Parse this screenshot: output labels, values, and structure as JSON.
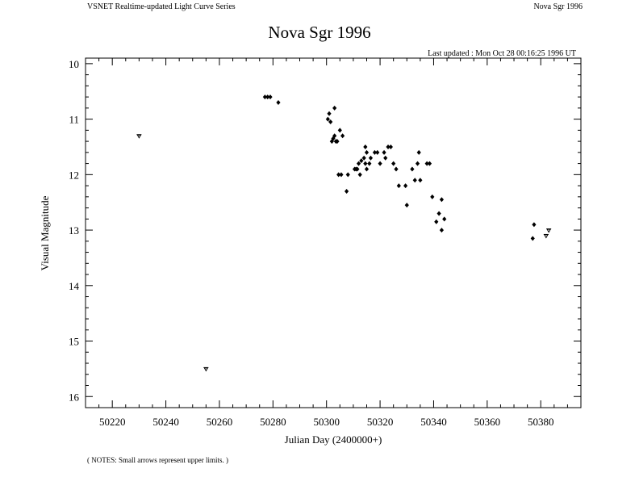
{
  "header": {
    "left": "VSNET Realtime-updated Light Curve Series",
    "right": "Nova Sgr 1996"
  },
  "last_updated": "Last updated :  Mon Oct 28 00:16:25 1996 UT",
  "notes": "( NOTES: Small arrows represent upper limits. )",
  "chart_data": {
    "type": "scatter",
    "title": "Nova Sgr 1996",
    "xlabel": "Julian Day (2400000+)",
    "ylabel": "Visual Magnitude",
    "xlim": [
      50210,
      50395
    ],
    "ylim": [
      16.2,
      9.9
    ],
    "y_inverted": true,
    "grid": false,
    "x_ticks": [
      50220,
      50240,
      50260,
      50280,
      50300,
      50320,
      50340,
      50360,
      50380
    ],
    "y_ticks": [
      10,
      11,
      12,
      13,
      14,
      15,
      16
    ],
    "series": [
      {
        "marker": "diamond",
        "points": [
          [
            50277,
            10.6
          ],
          [
            50278,
            10.6
          ],
          [
            50279,
            10.6
          ],
          [
            50282,
            10.7
          ],
          [
            50300.5,
            11.0
          ],
          [
            50301,
            10.9
          ],
          [
            50301.5,
            11.05
          ],
          [
            50302,
            11.4
          ],
          [
            50302.5,
            11.35
          ],
          [
            50303,
            10.8
          ],
          [
            50303,
            11.3
          ],
          [
            50303.5,
            11.4
          ],
          [
            50304,
            11.4
          ],
          [
            50304.5,
            12.0
          ],
          [
            50305,
            11.2
          ],
          [
            50305.5,
            12.0
          ],
          [
            50306,
            11.3
          ],
          [
            50307.5,
            12.3
          ],
          [
            50308,
            12.0
          ],
          [
            50310.5,
            11.9
          ],
          [
            50311,
            11.9
          ],
          [
            50311.5,
            11.9
          ],
          [
            50312,
            11.8
          ],
          [
            50312.5,
            12.0
          ],
          [
            50313,
            11.75
          ],
          [
            50314,
            11.7
          ],
          [
            50314.5,
            11.5
          ],
          [
            50314.5,
            11.8
          ],
          [
            50315,
            11.6
          ],
          [
            50315,
            11.9
          ],
          [
            50316,
            11.8
          ],
          [
            50316.5,
            11.7
          ],
          [
            50318,
            11.6
          ],
          [
            50319,
            11.6
          ],
          [
            50320,
            11.8
          ],
          [
            50321.5,
            11.6
          ],
          [
            50322,
            11.7
          ],
          [
            50323,
            11.5
          ],
          [
            50324,
            11.5
          ],
          [
            50325,
            11.8
          ],
          [
            50326,
            11.9
          ],
          [
            50327,
            12.2
          ],
          [
            50329.5,
            12.2
          ],
          [
            50330,
            12.55
          ],
          [
            50332,
            11.9
          ],
          [
            50333,
            12.1
          ],
          [
            50334,
            11.8
          ],
          [
            50334.5,
            11.6
          ],
          [
            50335,
            12.1
          ],
          [
            50337.5,
            11.8
          ],
          [
            50338.5,
            11.8
          ],
          [
            50339.5,
            12.4
          ],
          [
            50341,
            12.85
          ],
          [
            50342,
            12.7
          ],
          [
            50343,
            13.0
          ],
          [
            50343,
            12.45
          ],
          [
            50344,
            12.8
          ],
          [
            50377,
            13.15
          ],
          [
            50377.5,
            12.9
          ]
        ]
      },
      {
        "marker": "upper-limit-arrow",
        "points": [
          [
            50230,
            11.3
          ],
          [
            50255,
            15.5
          ],
          [
            50382,
            13.1
          ],
          [
            50383,
            13.0
          ]
        ]
      }
    ]
  }
}
